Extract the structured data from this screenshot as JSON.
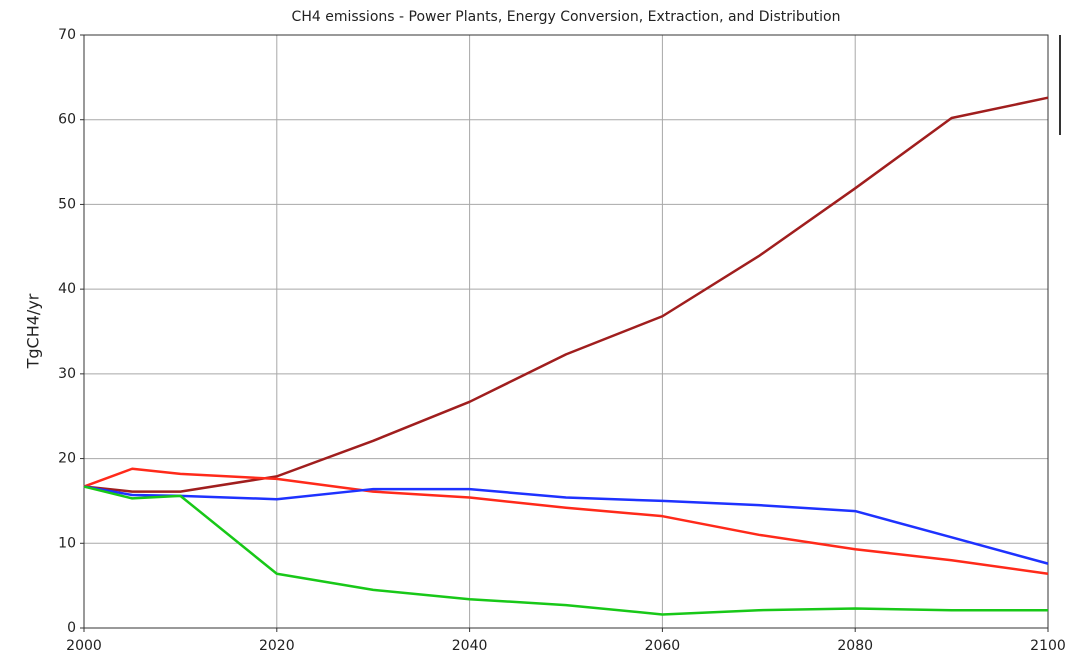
{
  "chart_data": {
    "type": "line",
    "title": "CH4 emissions - Power Plants, Energy Conversion, Extraction, and Distribution",
    "y_label": "TgCH4/yr",
    "x": [
      2000,
      2005,
      2010,
      2020,
      2030,
      2040,
      2050,
      2060,
      2070,
      2080,
      2090,
      2100
    ],
    "series": [
      {
        "color": "#a01e1e",
        "values": [
          16.7,
          16.1,
          16.1,
          17.9,
          22.1,
          26.7,
          32.3,
          36.8,
          43.9,
          51.9,
          60.2,
          62.6
        ]
      },
      {
        "color": "#ff2a1a",
        "values": [
          16.7,
          18.8,
          18.2,
          17.6,
          16.1,
          15.4,
          14.2,
          13.2,
          11.0,
          9.3,
          8.0,
          6.4
        ]
      },
      {
        "color": "#1e32ff",
        "values": [
          16.7,
          15.7,
          15.6,
          15.2,
          16.4,
          16.4,
          15.4,
          15.0,
          14.5,
          13.8,
          10.7,
          7.6
        ]
      },
      {
        "color": "#18c818",
        "values": [
          16.7,
          15.3,
          15.6,
          6.4,
          4.5,
          3.4,
          2.7,
          1.6,
          2.1,
          2.3,
          2.1,
          2.1
        ]
      }
    ],
    "xlim": [
      2000,
      2100
    ],
    "xticks": [
      2000,
      2020,
      2040,
      2060,
      2080,
      2100
    ],
    "ylim": [
      0,
      70
    ],
    "yticks": [
      0,
      10,
      20,
      30,
      40,
      50,
      60,
      70
    ],
    "grid": true
  }
}
